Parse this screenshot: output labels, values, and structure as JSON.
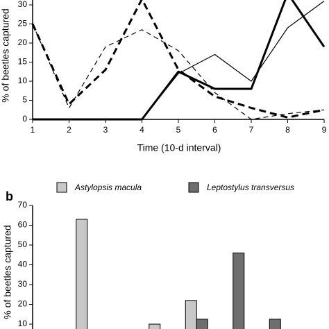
{
  "chart_data": [
    {
      "type": "line",
      "x_label": "Time (10-d interval)",
      "y_label": "% of beetles captured",
      "x": [
        1,
        2,
        3,
        4,
        5,
        6,
        7,
        8,
        9
      ],
      "xlim": [
        1,
        9
      ],
      "xticks": [
        1,
        2,
        3,
        4,
        5,
        6,
        7,
        8,
        9
      ],
      "ylim": [
        0,
        35
      ],
      "yticks": [
        0,
        5,
        10,
        15,
        20,
        25,
        30
      ],
      "series": [
        {
          "color": "#000000",
          "dashed": true,
          "thick": true,
          "values": [
            25,
            4,
            13,
            31.5,
            13,
            6,
            3,
            0.5,
            2.5
          ]
        },
        {
          "color": "#000000",
          "dashed": true,
          "thick": false,
          "values": [
            25,
            3,
            19,
            23.5,
            18,
            7,
            0,
            1.5,
            2.5
          ]
        },
        {
          "color": "#000000",
          "dashed": false,
          "thick": true,
          "values": [
            0,
            0,
            0,
            0,
            12.5,
            8,
            8,
            33,
            19
          ]
        },
        {
          "color": "#000000",
          "dashed": false,
          "thick": false,
          "values": [
            0,
            0,
            0,
            0,
            12,
            17,
            10,
            24,
            31
          ]
        }
      ]
    },
    {
      "type": "bar",
      "panel_label": "b",
      "y_label": "% of beetles captured",
      "categories": [
        null,
        null,
        null,
        null,
        null,
        null,
        null,
        null
      ],
      "ylim": [
        0,
        70
      ],
      "yticks": [
        10,
        20,
        30,
        40,
        50,
        60,
        70
      ],
      "series": [
        {
          "name": "Astylopsis macula",
          "color": "#c8c8c8",
          "values": [
            0,
            63,
            0,
            10,
            22,
            0,
            0,
            0
          ]
        },
        {
          "name": "Leptostylus transversus",
          "color": "#6e6e6e",
          "values": [
            0,
            0,
            0,
            0,
            12.5,
            46,
            12.5,
            0
          ]
        }
      ]
    }
  ]
}
